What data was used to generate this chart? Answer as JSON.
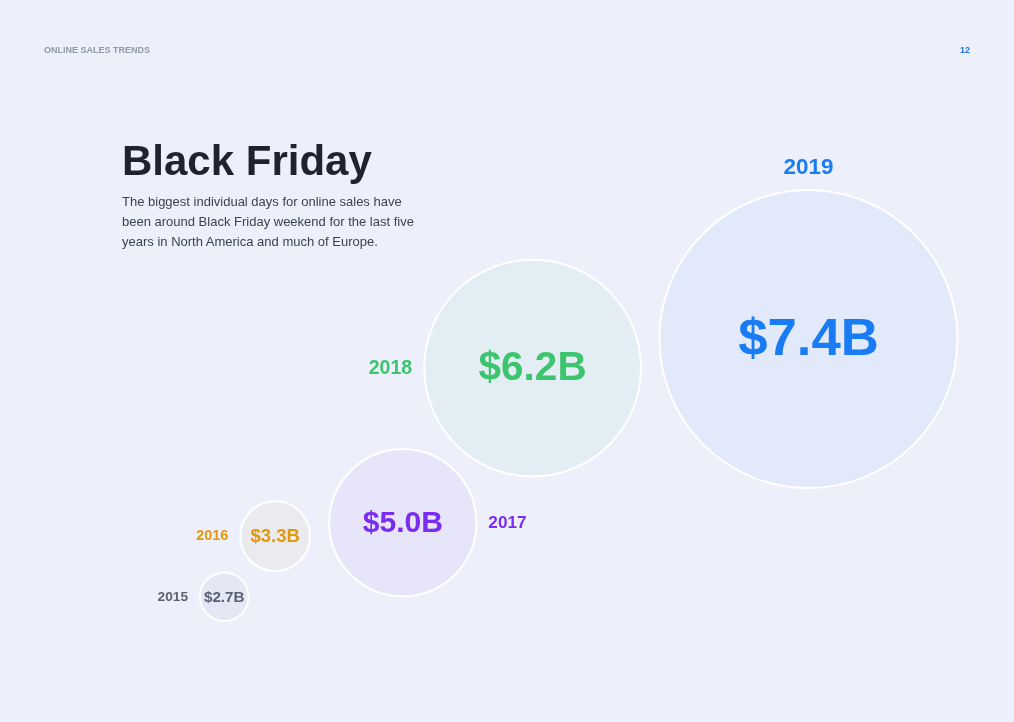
{
  "chart_data": {
    "type": "other",
    "title": "Black Friday",
    "subtitle": "The biggest individual days for online sales have been around Black Friday weekend for the last five years in North America and much of Europe.",
    "annotations": [
      "ONLINE SALES TRENDS",
      "12"
    ],
    "categories": [
      "2015",
      "2016",
      "2017",
      "2018",
      "2019"
    ],
    "values": [
      2.7,
      3.3,
      5.0,
      6.2,
      7.4
    ],
    "value_labels": [
      "$2.7B",
      "$3.3B",
      "$5.0B",
      "$6.2B",
      "$7.4B"
    ],
    "colors": [
      "#5a6172",
      "#e0980c",
      "#7a2cf0",
      "#3cc46e",
      "#1a7cf5"
    ]
  }
}
